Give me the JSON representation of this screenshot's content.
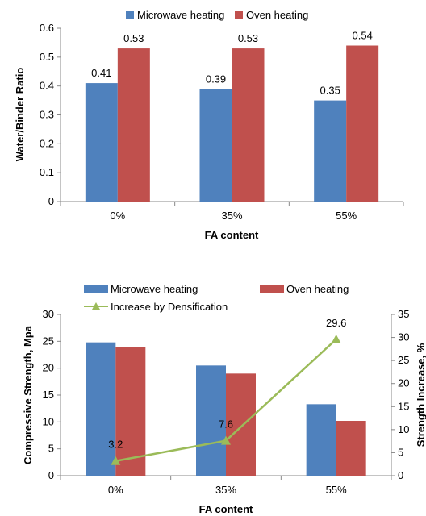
{
  "chart_data": [
    {
      "type": "bar",
      "categories": [
        "0%",
        "35%",
        "55%"
      ],
      "series": [
        {
          "name": "Microwave heating",
          "values": [
            0.41,
            0.39,
            0.35
          ],
          "color": "#4f81bd",
          "labels": [
            "0.41",
            "0.39",
            "0.35"
          ]
        },
        {
          "name": "Oven heating",
          "values": [
            0.53,
            0.53,
            0.54
          ],
          "color": "#c0504d",
          "labels": [
            "0.53",
            "0.53",
            "0.54"
          ]
        }
      ],
      "xlabel": "FA content",
      "ylabel": "Water/Binder Ratio",
      "ylim": [
        0,
        0.6
      ],
      "yticks": [
        "0",
        "0.1",
        "0.2",
        "0.3",
        "0.4",
        "0.5",
        "0.6"
      ],
      "legend": "top",
      "grid": false
    },
    {
      "type": "bar",
      "categories": [
        "0%",
        "35%",
        "55%"
      ],
      "series": [
        {
          "name": "Microwave heating",
          "values": [
            24.8,
            20.5,
            13.3
          ],
          "color": "#4f81bd"
        },
        {
          "name": "Oven heating",
          "values": [
            24.0,
            19.0,
            10.2
          ],
          "color": "#c0504d"
        }
      ],
      "line_series": {
        "name": "Increase by Densification",
        "values": [
          3.2,
          7.6,
          29.6
        ],
        "labels": [
          "3.2",
          "7.6",
          "29.6"
        ],
        "color": "#9bbb59",
        "axis": "right"
      },
      "xlabel": "FA content",
      "ylabel": "Compressive Strength, Mpa",
      "y2label": "Strength Increase, %",
      "ylim": [
        0,
        30
      ],
      "y2lim": [
        0,
        35
      ],
      "yticks": [
        "0",
        "5",
        "10",
        "15",
        "20",
        "25",
        "30"
      ],
      "y2ticks": [
        "0",
        "5",
        "10",
        "15",
        "20",
        "25",
        "30",
        "35"
      ],
      "legend": "top",
      "grid": false
    }
  ]
}
